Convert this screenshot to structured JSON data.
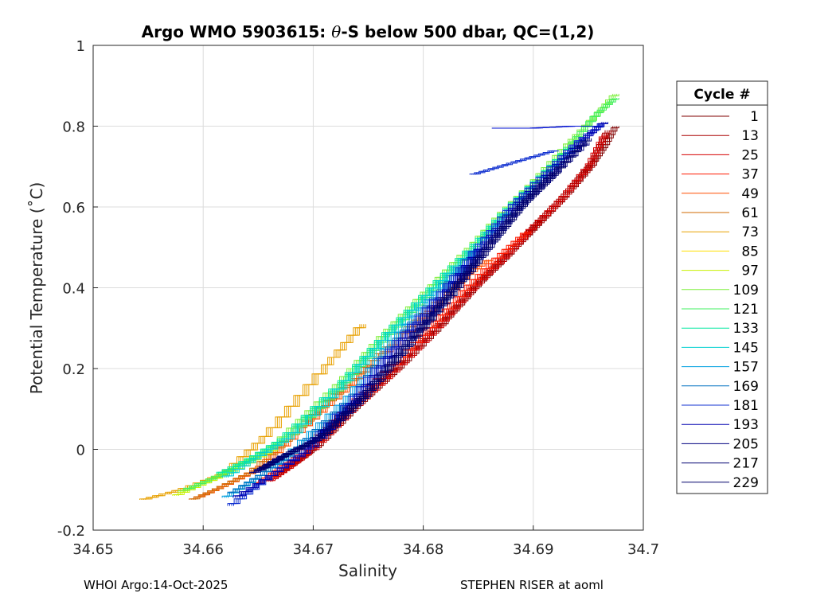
{
  "chart_data": {
    "type": "line",
    "title_prefix": "Argo WMO 5903615: ",
    "title_theta": "θ",
    "title_suffix": "-S below 500 dbar,  QC=(1,2)",
    "xlabel": "Salinity",
    "ylabel": "Potential Temperature (˚C)",
    "xlim": [
      34.65,
      34.7
    ],
    "ylim": [
      -0.2,
      1
    ],
    "xticks": [
      34.65,
      34.66,
      34.67,
      34.68,
      34.69,
      34.7
    ],
    "xtick_labels": [
      "34.65",
      "34.66",
      "34.67",
      "34.68",
      "34.69",
      "34.7"
    ],
    "yticks": [
      -0.2,
      0,
      0.2,
      0.4,
      0.6,
      0.8,
      1
    ],
    "ytick_labels": [
      "-0.2",
      "0",
      "0.2",
      "0.4",
      "0.6",
      "0.8",
      "1"
    ],
    "grid": true,
    "legend": {
      "title": "Cycle #",
      "placement": "outside-right",
      "entries": [
        {
          "label": "1",
          "color": "#800000"
        },
        {
          "label": "13",
          "color": "#aa0000"
        },
        {
          "label": "25",
          "color": "#d40000"
        },
        {
          "label": "37",
          "color": "#ff1a00"
        },
        {
          "label": "49",
          "color": "#ff4d00"
        },
        {
          "label": "61",
          "color": "#d06a00"
        },
        {
          "label": "73",
          "color": "#e8a000"
        },
        {
          "label": "85",
          "color": "#ffe000"
        },
        {
          "label": "97",
          "color": "#c8f000"
        },
        {
          "label": "109",
          "color": "#80f040"
        },
        {
          "label": "121",
          "color": "#40f060"
        },
        {
          "label": "133",
          "color": "#00e8a0"
        },
        {
          "label": "145",
          "color": "#00d0d0"
        },
        {
          "label": "157",
          "color": "#00a0e0"
        },
        {
          "label": "169",
          "color": "#0070c0"
        },
        {
          "label": "181",
          "color": "#1030d0"
        },
        {
          "label": "193",
          "color": "#0000b0"
        },
        {
          "label": "205",
          "color": "#000080"
        },
        {
          "label": "217",
          "color": "#000070"
        },
        {
          "label": "229",
          "color": "#00006a"
        }
      ]
    },
    "series": [
      {
        "color": "#800000",
        "x": [
          34.6665,
          34.668,
          34.67,
          34.674,
          34.678,
          34.682,
          34.685,
          34.688,
          34.6905,
          34.693,
          34.6955,
          34.6965,
          34.6975
        ],
        "y": [
          -0.07,
          -0.04,
          0.0,
          0.11,
          0.21,
          0.32,
          0.41,
          0.49,
          0.56,
          0.63,
          0.71,
          0.75,
          0.8
        ]
      },
      {
        "color": "#aa0000",
        "x": [
          34.6663,
          34.6678,
          34.6698,
          34.6738,
          34.6778,
          34.6818,
          34.6848,
          34.6878,
          34.6903,
          34.6928,
          34.6953,
          34.6968
        ],
        "y": [
          -0.075,
          -0.045,
          -0.005,
          0.105,
          0.205,
          0.315,
          0.405,
          0.485,
          0.555,
          0.625,
          0.705,
          0.79
        ]
      },
      {
        "color": "#d40000",
        "x": [
          34.666,
          34.6676,
          34.6696,
          34.6736,
          34.6776,
          34.6816,
          34.6846,
          34.6876,
          34.69,
          34.6926,
          34.695,
          34.6965
        ],
        "y": [
          -0.08,
          -0.05,
          -0.01,
          0.1,
          0.2,
          0.31,
          0.4,
          0.48,
          0.55,
          0.62,
          0.7,
          0.78
        ]
      },
      {
        "color": "#ff1a00",
        "x": [
          34.665,
          34.6668,
          34.669,
          34.673,
          34.677,
          34.681,
          34.684,
          34.687,
          34.6895
        ],
        "y": [
          -0.085,
          -0.05,
          -0.01,
          0.1,
          0.2,
          0.31,
          0.4,
          0.48,
          0.54
        ]
      },
      {
        "color": "#ff4d00",
        "x": [
          34.6595,
          34.662,
          34.665,
          34.669,
          34.673,
          34.677,
          34.681,
          34.684,
          34.686
        ],
        "y": [
          -0.12,
          -0.09,
          -0.05,
          0.05,
          0.15,
          0.25,
          0.35,
          0.43,
          0.47
        ]
      },
      {
        "color": "#d06a00",
        "x": [
          34.659,
          34.6615,
          34.6645,
          34.6685,
          34.6725,
          34.6765,
          34.6805,
          34.6835
        ],
        "y": [
          -0.125,
          -0.095,
          -0.055,
          0.045,
          0.145,
          0.245,
          0.345,
          0.42
        ]
      },
      {
        "color": "#e8a000",
        "x": [
          34.6545,
          34.658,
          34.662,
          34.666,
          34.671,
          34.6745
        ],
        "y": [
          -0.125,
          -0.1,
          -0.06,
          0.04,
          0.2,
          0.31
        ]
      },
      {
        "color": "#c8f000",
        "x": [
          34.6575,
          34.6605,
          34.6635,
          34.6665
        ],
        "y": [
          -0.115,
          -0.08,
          -0.045,
          0.0
        ]
      },
      {
        "color": "#80f040",
        "x": [
          34.658,
          34.661,
          34.664,
          34.667,
          34.672,
          34.676,
          34.68,
          34.684,
          34.687,
          34.69,
          34.693,
          34.6955,
          34.6975
        ],
        "y": [
          -0.105,
          -0.07,
          -0.03,
          0.02,
          0.15,
          0.27,
          0.38,
          0.49,
          0.58,
          0.66,
          0.75,
          0.82,
          0.88
        ]
      },
      {
        "color": "#40f060",
        "x": [
          34.6585,
          34.6615,
          34.6645,
          34.6675,
          34.6725,
          34.6765,
          34.6805,
          34.6845,
          34.6875,
          34.6905,
          34.6935,
          34.6958,
          34.6975
        ],
        "y": [
          -0.1,
          -0.065,
          -0.025,
          0.025,
          0.155,
          0.275,
          0.385,
          0.495,
          0.585,
          0.665,
          0.755,
          0.83,
          0.87
        ]
      },
      {
        "color": "#00e8a0",
        "x": [
          34.6615,
          34.6645,
          34.6675,
          34.6725,
          34.6765,
          34.6805,
          34.6845,
          34.6875,
          34.6905,
          34.6935
        ],
        "y": [
          -0.06,
          -0.02,
          0.03,
          0.16,
          0.28,
          0.39,
          0.5,
          0.59,
          0.67,
          0.75
        ]
      },
      {
        "color": "#00d0d0",
        "x": [
          34.662,
          34.665,
          34.668,
          34.6728,
          34.6768,
          34.6808,
          34.6848,
          34.6878
        ],
        "y": [
          -0.07,
          -0.02,
          0.03,
          0.16,
          0.28,
          0.39,
          0.5,
          0.59
        ]
      },
      {
        "color": "#00a0e0",
        "x": [
          34.662,
          34.665,
          34.668,
          34.673,
          34.677,
          34.681,
          34.685,
          34.688,
          34.691
        ],
        "y": [
          -0.12,
          -0.07,
          -0.01,
          0.12,
          0.26,
          0.38,
          0.5,
          0.6,
          0.68
        ]
      },
      {
        "color": "#0070c0",
        "x": [
          34.6625,
          34.6655,
          34.6685,
          34.6735,
          34.6775,
          34.6815,
          34.6855,
          34.6885,
          34.6915,
          34.6945
        ],
        "y": [
          -0.11,
          -0.06,
          -0.005,
          0.125,
          0.265,
          0.385,
          0.505,
          0.605,
          0.685,
          0.77
        ]
      },
      {
        "color": "#1030d0",
        "x": [
          34.6625,
          34.666,
          34.669,
          34.6735,
          34.6775,
          34.6815,
          34.685,
          34.688,
          34.691,
          34.694,
          34.6965
        ],
        "y": [
          -0.14,
          -0.07,
          -0.01,
          0.12,
          0.26,
          0.38,
          0.5,
          0.6,
          0.68,
          0.76,
          0.81
        ]
      },
      {
        "color": "#0000b0",
        "x": [
          34.663,
          34.6665,
          34.6695,
          34.674,
          34.678,
          34.682,
          34.6855,
          34.6885,
          34.6915,
          34.6945,
          34.6965
        ],
        "y": [
          -0.12,
          -0.06,
          -0.005,
          0.125,
          0.265,
          0.385,
          0.505,
          0.605,
          0.685,
          0.765,
          0.81
        ]
      },
      {
        "color": "#000080",
        "x": [
          34.6645,
          34.667,
          34.67,
          34.6745,
          34.6785,
          34.6822,
          34.6858,
          34.6888,
          34.6918,
          34.6948
        ],
        "y": [
          -0.06,
          -0.02,
          0.02,
          0.13,
          0.26,
          0.38,
          0.5,
          0.6,
          0.68,
          0.76
        ]
      },
      {
        "color": "#000070",
        "x": [
          34.665,
          34.6675,
          34.6705,
          34.6748,
          34.6788,
          34.6825,
          34.686,
          34.689,
          34.692
        ],
        "y": [
          -0.055,
          -0.015,
          0.025,
          0.135,
          0.265,
          0.385,
          0.505,
          0.605,
          0.685
        ]
      },
      {
        "color": "#00006a",
        "x": [
          34.6652,
          34.6678,
          34.6708,
          34.675,
          34.679,
          34.6828,
          34.6862,
          34.6892,
          34.6922,
          34.695
        ],
        "y": [
          -0.05,
          -0.01,
          0.03,
          0.14,
          0.27,
          0.39,
          0.51,
          0.61,
          0.69,
          0.77
        ]
      },
      {
        "color": "#0010d0",
        "x": [
          34.6865,
          34.69,
          34.6935,
          34.696
        ],
        "y": [
          0.795,
          0.795,
          0.8,
          0.8
        ]
      },
      {
        "color": "#1030d0",
        "x": [
          34.6845,
          34.687,
          34.6895,
          34.692
        ],
        "y": [
          0.68,
          0.7,
          0.72,
          0.74
        ]
      }
    ]
  },
  "footer": {
    "left": "WHOI Argo:14-Oct-2025",
    "right": "STEPHEN RISER at aoml"
  }
}
